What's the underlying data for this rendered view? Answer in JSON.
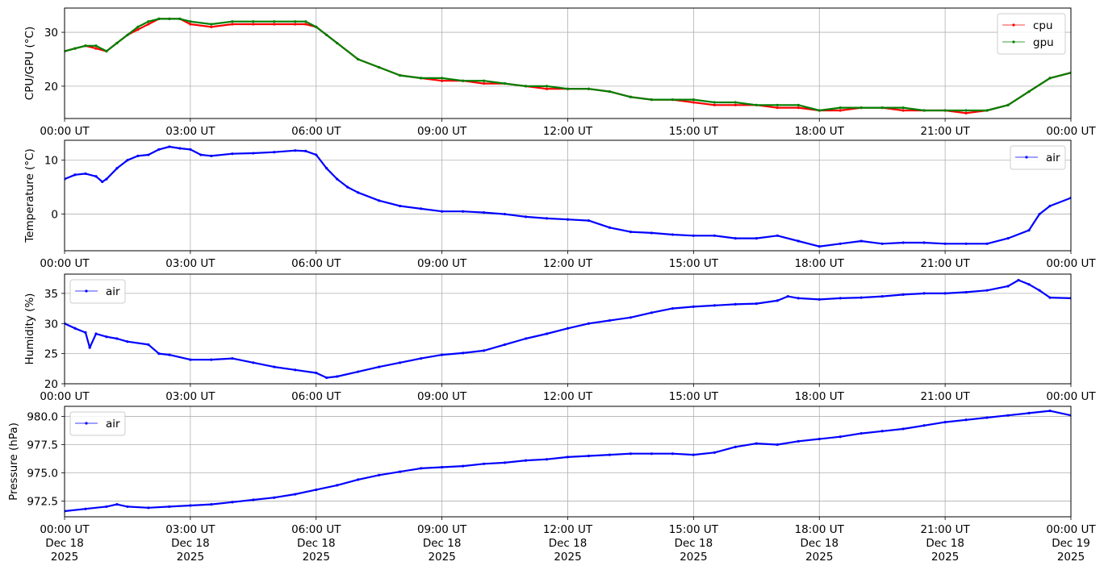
{
  "chart_data": [
    {
      "type": "line",
      "ylabel": "CPU/GPU (°C)",
      "ylim": [
        14,
        34.5
      ],
      "yticks": [
        20,
        30
      ],
      "grid": true,
      "legend": "top-right",
      "x_tick_labels": [
        "00:00 UT",
        "03:00 UT",
        "06:00 UT",
        "09:00 UT",
        "12:00 UT",
        "15:00 UT",
        "18:00 UT",
        "21:00 UT",
        "00:00 UT"
      ],
      "x_unit": "hours since 2025-12-18 00:00 UT",
      "series": [
        {
          "name": "cpu",
          "color": "#ff0000",
          "x": [
            0,
            0.25,
            0.5,
            0.75,
            1.0,
            1.25,
            1.5,
            1.75,
            2.0,
            2.25,
            2.5,
            2.75,
            3.0,
            3.5,
            4.0,
            4.5,
            5.0,
            5.5,
            5.75,
            6.0,
            6.25,
            6.5,
            7.0,
            7.5,
            8.0,
            8.5,
            9.0,
            9.5,
            10.0,
            10.5,
            11.0,
            11.5,
            12.0,
            12.5,
            13.0,
            13.5,
            14.0,
            14.5,
            15.0,
            15.5,
            16.0,
            16.5,
            17.0,
            17.5,
            18.0,
            18.5,
            19.0,
            19.5,
            20.0,
            20.5,
            21.0,
            21.5,
            22.0,
            22.5,
            23.0,
            23.5,
            24.0
          ],
          "values": [
            26.5,
            27.0,
            27.5,
            27.0,
            26.5,
            28.0,
            29.5,
            30.5,
            31.5,
            32.5,
            32.5,
            32.5,
            31.5,
            31.0,
            31.5,
            31.5,
            31.5,
            31.5,
            31.5,
            31.0,
            29.5,
            28.0,
            25.0,
            23.5,
            22.0,
            21.5,
            21.0,
            21.0,
            20.5,
            20.5,
            20.0,
            19.5,
            19.5,
            19.5,
            19.0,
            18.0,
            17.5,
            17.5,
            17.0,
            16.5,
            16.5,
            16.5,
            16.0,
            16.0,
            15.5,
            15.5,
            16.0,
            16.0,
            15.5,
            15.5,
            15.5,
            15.0,
            15.5,
            16.5,
            19.0,
            21.5,
            22.5
          ]
        },
        {
          "name": "gpu",
          "color": "#008000",
          "x": [
            0,
            0.25,
            0.5,
            0.75,
            1.0,
            1.25,
            1.5,
            1.75,
            2.0,
            2.25,
            2.5,
            2.75,
            3.0,
            3.5,
            4.0,
            4.5,
            5.0,
            5.5,
            5.75,
            6.0,
            6.25,
            6.5,
            7.0,
            7.5,
            8.0,
            8.5,
            9.0,
            9.5,
            10.0,
            10.5,
            11.0,
            11.5,
            12.0,
            12.5,
            13.0,
            13.5,
            14.0,
            14.5,
            15.0,
            15.5,
            16.0,
            16.5,
            17.0,
            17.5,
            18.0,
            18.5,
            19.0,
            19.5,
            20.0,
            20.5,
            21.0,
            21.5,
            22.0,
            22.5,
            23.0,
            23.5,
            24.0
          ],
          "values": [
            26.5,
            27.0,
            27.5,
            27.5,
            26.5,
            28.0,
            29.5,
            31.0,
            32.0,
            32.5,
            32.5,
            32.5,
            32.0,
            31.5,
            32.0,
            32.0,
            32.0,
            32.0,
            32.0,
            31.0,
            29.5,
            28.0,
            25.0,
            23.5,
            22.0,
            21.5,
            21.5,
            21.0,
            21.0,
            20.5,
            20.0,
            20.0,
            19.5,
            19.5,
            19.0,
            18.0,
            17.5,
            17.5,
            17.5,
            17.0,
            17.0,
            16.5,
            16.5,
            16.5,
            15.5,
            16.0,
            16.0,
            16.0,
            16.0,
            15.5,
            15.5,
            15.5,
            15.5,
            16.5,
            19.0,
            21.5,
            22.5
          ]
        }
      ]
    },
    {
      "type": "line",
      "ylabel": "Temperature (°C)",
      "ylim": [
        -6.8,
        13.7
      ],
      "yticks": [
        0,
        10
      ],
      "grid": true,
      "legend": "top-right",
      "x_tick_labels": [
        "00:00 UT",
        "03:00 UT",
        "06:00 UT",
        "09:00 UT",
        "12:00 UT",
        "15:00 UT",
        "18:00 UT",
        "21:00 UT",
        "00:00 UT"
      ],
      "series": [
        {
          "name": "air",
          "color": "#0000ff",
          "x": [
            0,
            0.25,
            0.5,
            0.75,
            0.9,
            1.0,
            1.25,
            1.5,
            1.75,
            2.0,
            2.25,
            2.5,
            2.75,
            3.0,
            3.25,
            3.5,
            4.0,
            4.5,
            5.0,
            5.5,
            5.75,
            6.0,
            6.25,
            6.5,
            6.75,
            7.0,
            7.5,
            8.0,
            8.5,
            9.0,
            9.5,
            10.0,
            10.5,
            11.0,
            11.5,
            12.0,
            12.5,
            13.0,
            13.5,
            14.0,
            14.5,
            15.0,
            15.5,
            16.0,
            16.5,
            17.0,
            17.5,
            18.0,
            18.5,
            19.0,
            19.5,
            20.0,
            20.5,
            21.0,
            21.5,
            22.0,
            22.5,
            23.0,
            23.25,
            23.5,
            24.0
          ],
          "values": [
            6.5,
            7.3,
            7.5,
            7.0,
            6.0,
            6.5,
            8.5,
            10.0,
            10.8,
            11.0,
            12.0,
            12.5,
            12.2,
            12.0,
            11.0,
            10.8,
            11.2,
            11.3,
            11.5,
            11.8,
            11.7,
            11.0,
            8.5,
            6.5,
            5.0,
            4.0,
            2.5,
            1.5,
            1.0,
            0.5,
            0.5,
            0.3,
            0.0,
            -0.5,
            -0.8,
            -1.0,
            -1.2,
            -2.5,
            -3.3,
            -3.5,
            -3.8,
            -4.0,
            -4.0,
            -4.5,
            -4.5,
            -4.0,
            -5.0,
            -6.0,
            -5.5,
            -5.0,
            -5.5,
            -5.3,
            -5.3,
            -5.5,
            -5.5,
            -5.5,
            -4.5,
            -3.0,
            0.0,
            1.5,
            3.0
          ]
        }
      ]
    },
    {
      "type": "line",
      "ylabel": "Humidity (%)",
      "ylim": [
        20,
        38.2
      ],
      "yticks": [
        20,
        25,
        30,
        35
      ],
      "grid": true,
      "legend": "top-left",
      "x_tick_labels": [
        "00:00 UT",
        "03:00 UT",
        "06:00 UT",
        "09:00 UT",
        "12:00 UT",
        "15:00 UT",
        "18:00 UT",
        "21:00 UT",
        "00:00 UT"
      ],
      "series": [
        {
          "name": "air",
          "color": "#0000ff",
          "x": [
            0,
            0.25,
            0.5,
            0.6,
            0.75,
            1.0,
            1.25,
            1.5,
            2.0,
            2.25,
            2.5,
            3.0,
            3.5,
            4.0,
            4.5,
            5.0,
            5.5,
            6.0,
            6.25,
            6.5,
            7.0,
            7.5,
            8.0,
            8.5,
            9.0,
            9.5,
            10.0,
            10.5,
            11.0,
            11.5,
            12.0,
            12.5,
            13.0,
            13.5,
            14.0,
            14.5,
            15.0,
            15.5,
            16.0,
            16.5,
            17.0,
            17.25,
            17.5,
            18.0,
            18.5,
            19.0,
            19.5,
            20.0,
            20.5,
            21.0,
            21.5,
            22.0,
            22.5,
            22.75,
            23.0,
            23.25,
            23.5,
            24.0
          ],
          "values": [
            30.0,
            29.2,
            28.5,
            26.0,
            28.3,
            27.8,
            27.5,
            27.0,
            26.5,
            25.0,
            24.8,
            24.0,
            24.0,
            24.2,
            23.5,
            22.8,
            22.3,
            21.8,
            21.0,
            21.2,
            22.0,
            22.8,
            23.5,
            24.2,
            24.8,
            25.1,
            25.5,
            26.5,
            27.5,
            28.3,
            29.2,
            30.0,
            30.5,
            31.0,
            31.8,
            32.5,
            32.8,
            33.0,
            33.2,
            33.3,
            33.8,
            34.5,
            34.2,
            34.0,
            34.2,
            34.3,
            34.5,
            34.8,
            35.0,
            35.0,
            35.2,
            35.5,
            36.2,
            37.2,
            36.5,
            35.5,
            34.3,
            34.2
          ]
        }
      ]
    },
    {
      "type": "line",
      "ylabel": "Pressure (hPa)",
      "ylim": [
        971.1,
        980.9
      ],
      "yticks": [
        972.5,
        975.0,
        977.5,
        980.0
      ],
      "ytick_labels": [
        "972.5",
        "975.0",
        "977.5",
        "980.0"
      ],
      "grid": true,
      "legend": "top-left",
      "x_tick_labels": [
        [
          "00:00 UT",
          "Dec 18",
          "2025"
        ],
        [
          "03:00 UT",
          "Dec 18",
          "2025"
        ],
        [
          "06:00 UT",
          "Dec 18",
          "2025"
        ],
        [
          "09:00 UT",
          "Dec 18",
          "2025"
        ],
        [
          "12:00 UT",
          "Dec 18",
          "2025"
        ],
        [
          "15:00 UT",
          "Dec 18",
          "2025"
        ],
        [
          "18:00 UT",
          "Dec 18",
          "2025"
        ],
        [
          "21:00 UT",
          "Dec 18",
          "2025"
        ],
        [
          "00:00 UT",
          "Dec 19",
          "2025"
        ]
      ],
      "series": [
        {
          "name": "air",
          "color": "#0000ff",
          "x": [
            0,
            0.5,
            1.0,
            1.25,
            1.5,
            2.0,
            2.5,
            3.0,
            3.5,
            4.0,
            4.5,
            5.0,
            5.5,
            6.0,
            6.5,
            7.0,
            7.5,
            8.0,
            8.5,
            9.0,
            9.5,
            10.0,
            10.5,
            11.0,
            11.5,
            12.0,
            12.5,
            13.0,
            13.5,
            14.0,
            14.5,
            15.0,
            15.5,
            16.0,
            16.5,
            17.0,
            17.5,
            18.0,
            18.5,
            19.0,
            19.5,
            20.0,
            20.5,
            21.0,
            21.5,
            22.0,
            22.5,
            23.0,
            23.5,
            24.0
          ],
          "values": [
            971.6,
            971.8,
            972.0,
            972.2,
            972.0,
            971.9,
            972.0,
            972.1,
            972.2,
            972.4,
            972.6,
            972.8,
            973.1,
            973.5,
            973.9,
            974.4,
            974.8,
            975.1,
            975.4,
            975.5,
            975.6,
            975.8,
            975.9,
            976.1,
            976.2,
            976.4,
            976.5,
            976.6,
            976.7,
            976.7,
            976.7,
            976.6,
            976.8,
            977.3,
            977.6,
            977.5,
            977.8,
            978.0,
            978.2,
            978.5,
            978.7,
            978.9,
            979.2,
            979.5,
            979.7,
            979.9,
            980.1,
            980.3,
            980.5,
            980.1
          ]
        }
      ]
    }
  ]
}
